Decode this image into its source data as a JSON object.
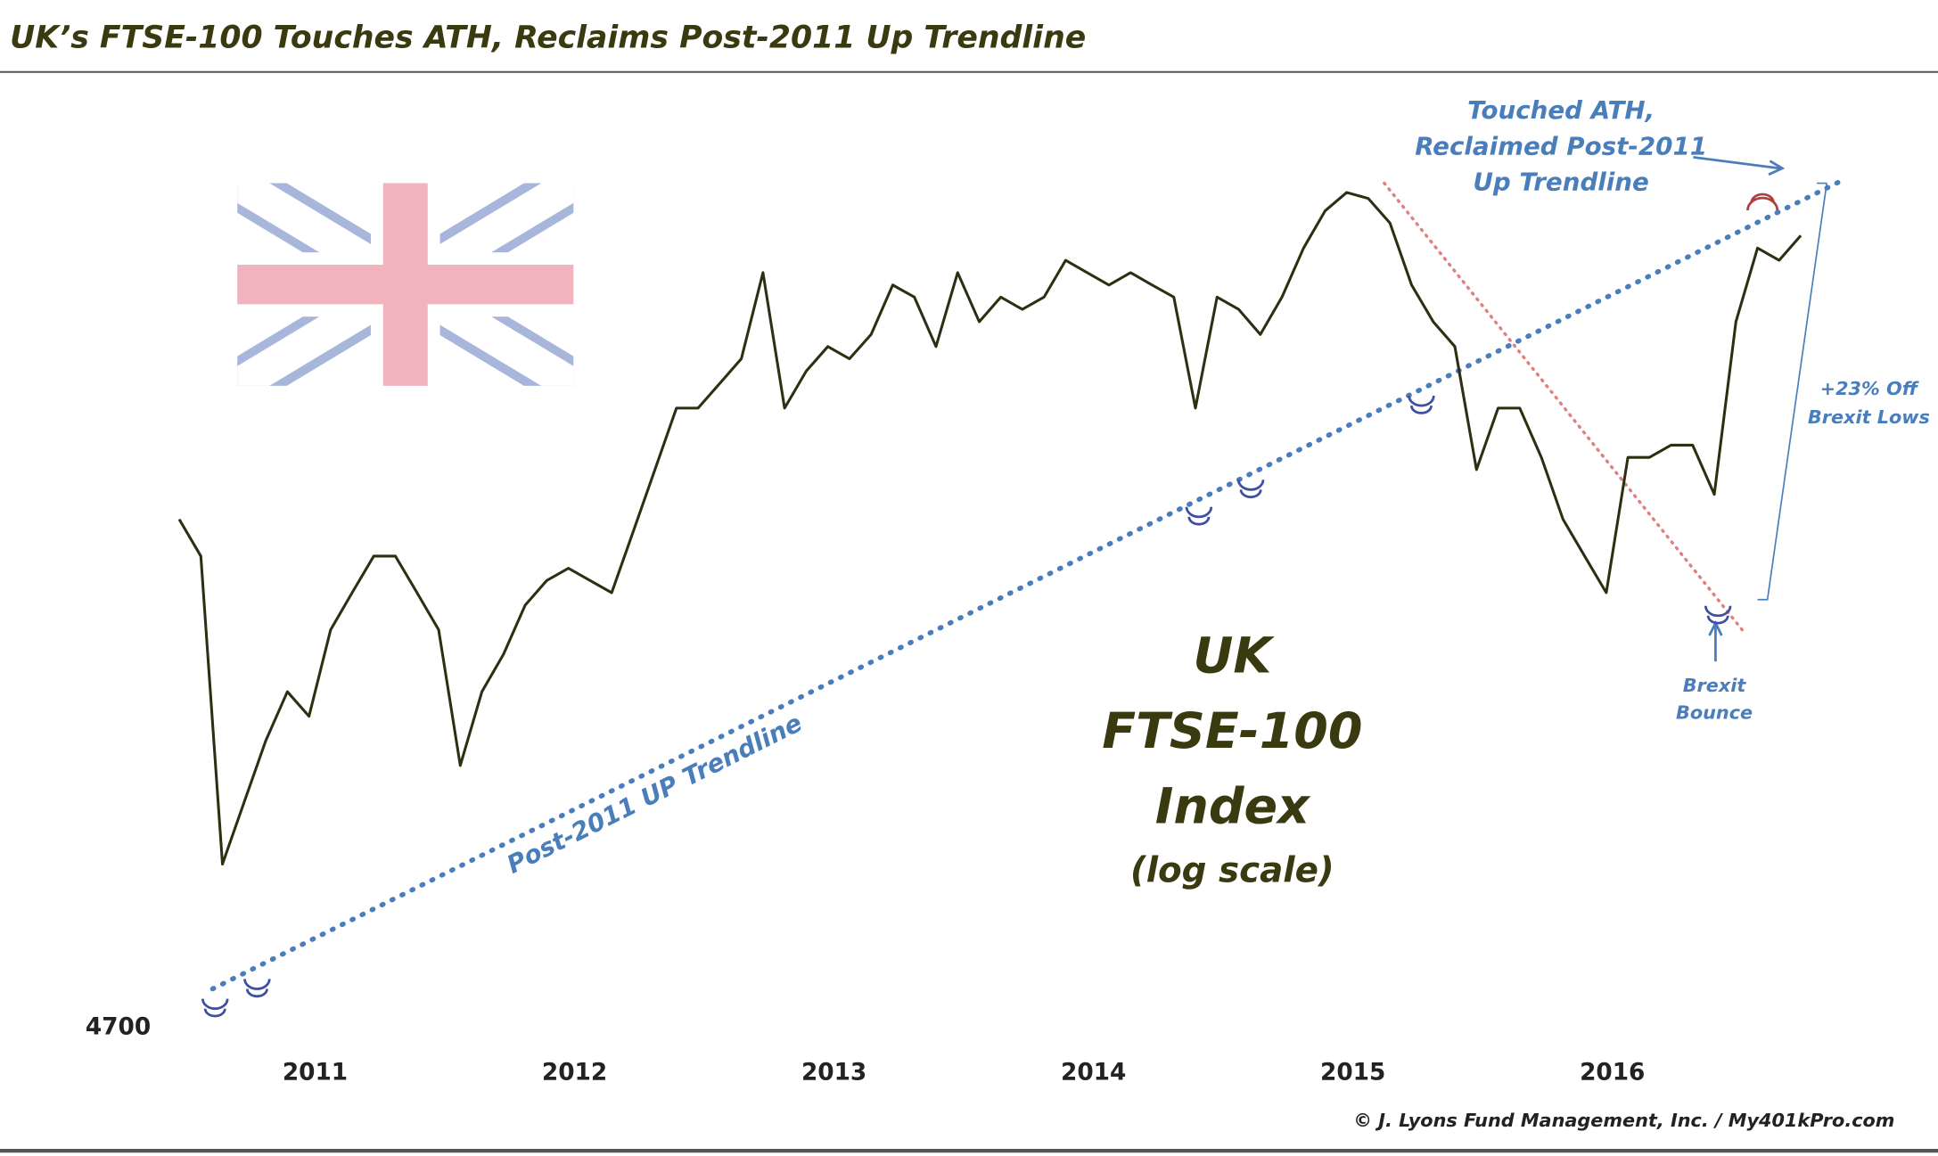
{
  "chart_data": {
    "type": "line",
    "title": "UK’s FTSE-100 Touches ATH, Reclaims Post-2011 Up Trendline",
    "log_scale": true,
    "categories": [
      null,
      null,
      null,
      null,
      null,
      null,
      "2011",
      null,
      null,
      null,
      null,
      null,
      null,
      null,
      null,
      null,
      null,
      null,
      "2012",
      null,
      null,
      null,
      null,
      null,
      null,
      null,
      null,
      null,
      null,
      null,
      "2013",
      null,
      null,
      null,
      null,
      null,
      null,
      null,
      null,
      null,
      null,
      null,
      "2014",
      null,
      null,
      null,
      null,
      null,
      null,
      null,
      null,
      null,
      null,
      null,
      "2015",
      null,
      null,
      null,
      null,
      null,
      null,
      null,
      null,
      null,
      null,
      null,
      "2016",
      null,
      null,
      null,
      null,
      null,
      null,
      null,
      null,
      null
    ],
    "series": [
      {
        "name": "FTSE-100",
        "color": "#2e2e12",
        "values": [
          6024,
          5917,
          5091,
          5247,
          5407,
          5538,
          5472,
          5708,
          5812,
          5917,
          5917,
          5812,
          5708,
          5342,
          5538,
          5640,
          5777,
          5847,
          5882,
          5847,
          5812,
          5989,
          6172,
          6360,
          6360,
          6437,
          6515,
          6795,
          6360,
          6476,
          6554,
          6515,
          6593,
          6754,
          6714,
          6554,
          6795,
          6634,
          6714,
          6674,
          6714,
          6836,
          6795,
          6754,
          6795,
          6754,
          6714,
          6360,
          6714,
          6674,
          6593,
          6714,
          6877,
          7003,
          7066,
          7045,
          6961,
          6754,
          6634,
          6554,
          6172,
          6360,
          6360,
          6209,
          6024,
          5917,
          5812,
          6209,
          6209,
          6246,
          6246,
          6098,
          6634,
          6877,
          6836,
          6919
        ]
      }
    ],
    "ylim": [
      4620,
      7440
    ],
    "yticks": [
      4700
    ],
    "annotations": [
      [
        "Touched ATH,",
        "Reclaimed Post-2011",
        "Up Trendline"
      ],
      [
        "+23% Off",
        "Brexit Lows"
      ],
      [
        "Brexit",
        "Bounce"
      ],
      [
        "Post-2011 UP Trendline"
      ],
      [
        "UK",
        "FTSE-100",
        "Index",
        "(log scale)"
      ]
    ],
    "source": "© J. Lyons Fund Management, Inc. / My401kPro.com"
  }
}
